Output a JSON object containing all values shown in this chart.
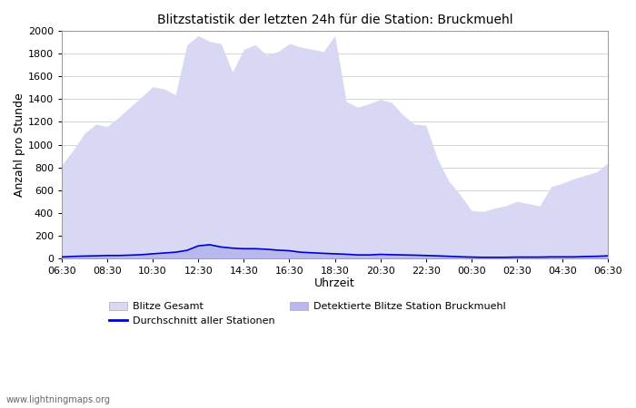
{
  "title": "Blitzstatistik der letzten 24h für die Station: Bruckmuehl",
  "xlabel": "Uhrzeit",
  "ylabel": "Anzahl pro Stunde",
  "ylim": [
    0,
    2000
  ],
  "yticks": [
    0,
    200,
    400,
    600,
    800,
    1000,
    1200,
    1400,
    1600,
    1800,
    2000
  ],
  "xtick_labels": [
    "06:30",
    "08:30",
    "10:30",
    "12:30",
    "14:30",
    "16:30",
    "18:30",
    "20:30",
    "22:30",
    "00:30",
    "02:30",
    "04:30",
    "06:30"
  ],
  "color_gesamt": "#d8d8f5",
  "color_detektiert": "#b8b8ee",
  "color_avg_line": "#0000cc",
  "watermark": "www.lightningmaps.org",
  "times_x": [
    0,
    1,
    2,
    3,
    4,
    5,
    6,
    7,
    8,
    9,
    10,
    11,
    12,
    13,
    14,
    15,
    16,
    17,
    18,
    19,
    20,
    21,
    22,
    23,
    24,
    25,
    26,
    27,
    28,
    29,
    30,
    31,
    32,
    33,
    34,
    35,
    36,
    37,
    38,
    39,
    40,
    41,
    42,
    43,
    44,
    45,
    46,
    47,
    48
  ],
  "gesamt": [
    820,
    950,
    1100,
    1180,
    1160,
    1240,
    1330,
    1420,
    1510,
    1490,
    1440,
    1880,
    1960,
    1910,
    1890,
    1640,
    1840,
    1880,
    1790,
    1820,
    1890,
    1860,
    1840,
    1820,
    1960,
    1380,
    1330,
    1360,
    1400,
    1370,
    1260,
    1180,
    1170,
    880,
    680,
    560,
    420,
    410,
    440,
    460,
    500,
    480,
    460,
    630,
    660,
    700,
    730,
    760,
    840
  ],
  "detektiert": [
    10,
    12,
    15,
    18,
    20,
    22,
    25,
    28,
    35,
    42,
    52,
    65,
    110,
    120,
    100,
    92,
    88,
    88,
    82,
    72,
    68,
    55,
    50,
    45,
    40,
    36,
    30,
    30,
    35,
    33,
    30,
    28,
    25,
    22,
    18,
    13,
    10,
    8,
    8,
    8,
    10,
    10,
    10,
    12,
    12,
    12,
    15,
    17,
    22
  ],
  "avg_line": [
    10,
    15,
    18,
    20,
    23,
    23,
    26,
    30,
    38,
    45,
    52,
    68,
    108,
    118,
    98,
    88,
    83,
    83,
    78,
    70,
    65,
    52,
    47,
    42,
    38,
    34,
    28,
    28,
    33,
    30,
    28,
    26,
    23,
    20,
    16,
    12,
    9,
    7,
    7,
    7,
    9,
    9,
    9,
    11,
    11,
    11,
    14,
    16,
    20
  ]
}
